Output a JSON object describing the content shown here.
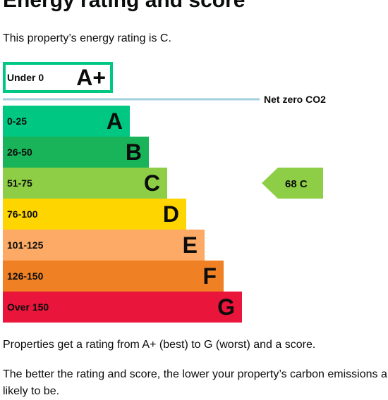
{
  "page": {
    "title": "Energy rating and score",
    "intro": "This property’s energy rating is C.",
    "footer1": "Properties get a rating from A+ (best) to G (worst) and a score.",
    "footer2": "The better the rating and score, the lower your property’s carbon emissions are likely to be."
  },
  "chart_data": {
    "type": "bar",
    "title": "",
    "categories": [
      "A+",
      "A",
      "B",
      "C",
      "D",
      "E",
      "F",
      "G"
    ],
    "bands": [
      {
        "letter": "A+",
        "range": "Under 0",
        "color": "#ffffff",
        "border": "#00c781"
      },
      {
        "letter": "A",
        "range": "0-25",
        "color": "#00c781"
      },
      {
        "letter": "B",
        "range": "26-50",
        "color": "#19b459"
      },
      {
        "letter": "C",
        "range": "51-75",
        "color": "#8dce46"
      },
      {
        "letter": "D",
        "range": "76-100",
        "color": "#ffd500"
      },
      {
        "letter": "E",
        "range": "101-125",
        "color": "#fcaa65"
      },
      {
        "letter": "F",
        "range": "126-150",
        "color": "#ef8023"
      },
      {
        "letter": "G",
        "range": "Over 150",
        "color": "#e9153b"
      }
    ],
    "net_zero_label": "Net zero CO2",
    "net_zero_color": "#a3cfe0",
    "current": {
      "score": 68,
      "letter": "C",
      "label": "68 C",
      "color": "#8dce46"
    }
  }
}
